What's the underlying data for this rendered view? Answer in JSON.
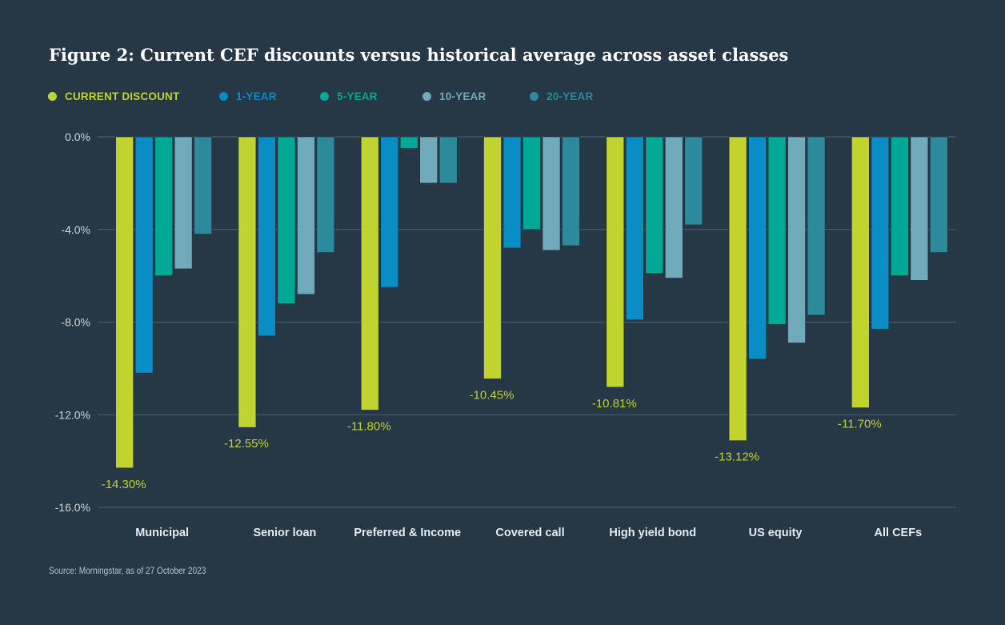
{
  "title": "Figure 2: Current CEF discounts versus historical average across asset classes",
  "source": "Source: Morningstar, as of 27 October 2023",
  "colors": {
    "background": "#263746",
    "grid": "#4f5f6d",
    "tick_text": "#d0d8de",
    "category_text": "#e6ecf0"
  },
  "chart_data": {
    "type": "bar",
    "title": "Figure 2: Current CEF discounts versus historical average across asset classes",
    "xlabel": "",
    "ylabel": "",
    "ylim": [
      -16,
      0
    ],
    "yticks": [
      0,
      -4,
      -8,
      -12,
      -16
    ],
    "ytick_labels": [
      "0.0%",
      "-4.0%",
      "-8.0%",
      "-12.0%",
      "-16.0%"
    ],
    "grid": true,
    "legend_position": "top-left",
    "categories": [
      "Municipal",
      "Senior loan",
      "Preferred & Income",
      "Covered call",
      "High yield bond",
      "US equity",
      "All CEFs"
    ],
    "series": [
      {
        "name": "CURRENT DISCOUNT",
        "color": "#c1d32f",
        "values": [
          -14.3,
          -12.55,
          -11.8,
          -10.45,
          -10.81,
          -13.12,
          -11.7
        ],
        "data_labels": [
          "-14.30%",
          "-12.55%",
          "-11.80%",
          "-10.45%",
          "-10.81%",
          "-13.12%",
          "-11.70%"
        ]
      },
      {
        "name": "1-YEAR",
        "color": "#0a8dc4",
        "values": [
          -10.2,
          -8.6,
          -6.5,
          -4.8,
          -7.9,
          -9.6,
          -8.3
        ]
      },
      {
        "name": "5-YEAR",
        "color": "#00a996",
        "values": [
          -6.0,
          -7.2,
          -0.5,
          -4.0,
          -5.9,
          -8.1,
          -6.0
        ]
      },
      {
        "name": "10-YEAR",
        "color": "#71aabb",
        "values": [
          -5.7,
          -6.8,
          -2.0,
          -4.9,
          -6.1,
          -8.9,
          -6.2
        ]
      },
      {
        "name": "20-YEAR",
        "color": "#2c8a9c",
        "values": [
          -4.2,
          -5.0,
          -2.0,
          -4.7,
          -3.8,
          -7.7,
          -5.0
        ]
      }
    ]
  }
}
